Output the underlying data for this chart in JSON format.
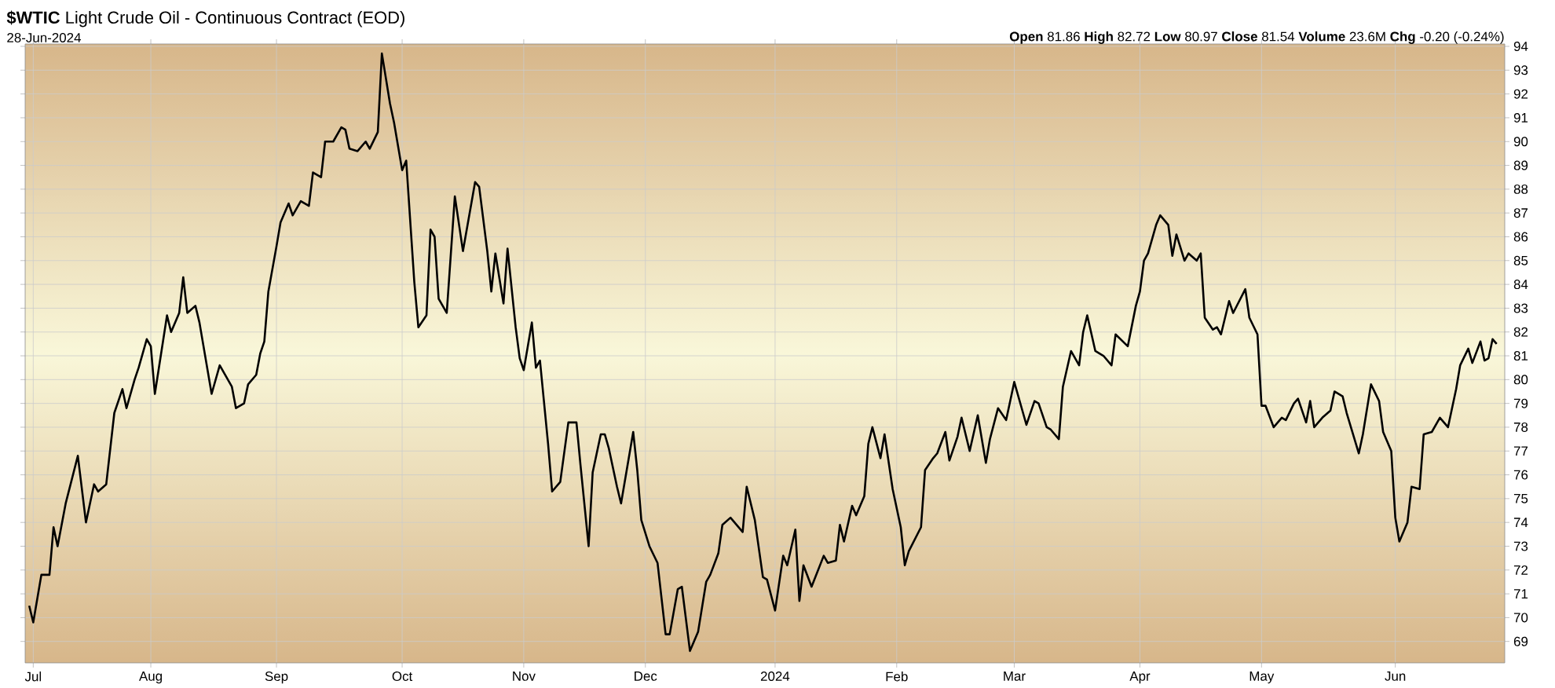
{
  "chart_data": {
    "type": "line",
    "title": "**$WTIC** Light Crude Oil - Continuous Contract (EOD)",
    "subtitle": "28-Jun-2024",
    "annotations": [
      "**Open** 81.86  **High** 82.72  **Low** 80.97  **Close** 81.54  **Volume** 23.6M  **Chg** -0.20 (-0.24%)"
    ],
    "x": [
      "2023-07-02",
      "2023-07-03",
      "2023-07-05",
      "2023-07-07",
      "2023-07-08",
      "2023-07-09",
      "2023-07-11",
      "2023-07-14",
      "2023-07-16",
      "2023-07-18",
      "2023-07-19",
      "2023-07-21",
      "2023-07-23",
      "2023-07-25",
      "2023-07-26",
      "2023-07-28",
      "2023-07-29",
      "2023-07-31",
      "2023-08-01",
      "2023-08-02",
      "2023-08-05",
      "2023-08-06",
      "2023-08-08",
      "2023-08-09",
      "2023-08-10",
      "2023-08-12",
      "2023-08-13",
      "2023-08-16",
      "2023-08-18",
      "2023-08-21",
      "2023-08-22",
      "2023-08-24",
      "2023-08-25",
      "2023-08-27",
      "2023-08-28",
      "2023-08-29",
      "2023-08-30",
      "2023-09-01",
      "2023-09-02",
      "2023-09-04",
      "2023-09-05",
      "2023-09-07",
      "2023-09-09",
      "2023-09-10",
      "2023-09-12",
      "2023-09-13",
      "2023-09-15",
      "2023-09-17",
      "2023-09-18",
      "2023-09-19",
      "2023-09-21",
      "2023-09-23",
      "2023-09-24",
      "2023-09-26",
      "2023-09-27",
      "2023-09-29",
      "2023-09-30",
      "2023-10-02",
      "2023-10-03",
      "2023-10-05",
      "2023-10-06",
      "2023-10-08",
      "2023-10-09",
      "2023-10-10",
      "2023-10-11",
      "2023-10-13",
      "2023-10-15",
      "2023-10-17",
      "2023-10-20",
      "2023-10-21",
      "2023-10-23",
      "2023-10-24",
      "2023-10-25",
      "2023-10-27",
      "2023-10-28",
      "2023-10-30",
      "2023-10-31",
      "2023-11-01",
      "2023-11-03",
      "2023-11-04",
      "2023-11-05",
      "2023-11-07",
      "2023-11-08",
      "2023-11-10",
      "2023-11-12",
      "2023-11-14",
      "2023-11-15",
      "2023-11-17",
      "2023-11-18",
      "2023-11-20",
      "2023-11-21",
      "2023-11-22",
      "2023-11-24",
      "2023-11-25",
      "2023-11-28",
      "2023-11-29",
      "2023-11-30",
      "2023-12-02",
      "2023-12-04",
      "2023-12-06",
      "2023-12-07",
      "2023-12-09",
      "2023-12-10",
      "2023-12-12",
      "2023-12-14",
      "2023-12-16",
      "2023-12-17",
      "2023-12-19",
      "2023-12-20",
      "2023-12-22",
      "2023-12-25",
      "2023-12-26",
      "2023-12-28",
      "2023-12-30",
      "2023-12-31",
      "2024-01-02",
      "2024-01-04",
      "2024-01-05",
      "2024-01-07",
      "2024-01-08",
      "2024-01-09",
      "2024-01-11",
      "2024-01-14",
      "2024-01-15",
      "2024-01-17",
      "2024-01-18",
      "2024-01-19",
      "2024-01-21",
      "2024-01-22",
      "2024-01-24",
      "2024-01-25",
      "2024-01-26",
      "2024-01-28",
      "2024-01-29",
      "2024-01-31",
      "2024-02-02",
      "2024-02-03",
      "2024-02-04",
      "2024-02-07",
      "2024-02-08",
      "2024-02-10",
      "2024-02-11",
      "2024-02-13",
      "2024-02-14",
      "2024-02-16",
      "2024-02-17",
      "2024-02-19",
      "2024-02-21",
      "2024-02-23",
      "2024-02-24",
      "2024-02-26",
      "2024-02-28",
      "2024-03-01",
      "2024-03-03",
      "2024-03-04",
      "2024-03-06",
      "2024-03-07",
      "2024-03-09",
      "2024-03-10",
      "2024-03-12",
      "2024-03-13",
      "2024-03-15",
      "2024-03-17",
      "2024-03-18",
      "2024-03-19",
      "2024-03-21",
      "2024-03-23",
      "2024-03-25",
      "2024-03-26",
      "2024-03-29",
      "2024-03-31",
      "2024-04-01",
      "2024-04-02",
      "2024-04-03",
      "2024-04-05",
      "2024-04-06",
      "2024-04-08",
      "2024-04-09",
      "2024-04-10",
      "2024-04-12",
      "2024-04-13",
      "2024-04-15",
      "2024-04-16",
      "2024-04-17",
      "2024-04-19",
      "2024-04-20",
      "2024-04-21",
      "2024-04-23",
      "2024-04-24",
      "2024-04-27",
      "2024-04-28",
      "2024-04-30",
      "2024-05-01",
      "2024-05-02",
      "2024-05-04",
      "2024-05-06",
      "2024-05-07",
      "2024-05-09",
      "2024-05-10",
      "2024-05-12",
      "2024-05-13",
      "2024-05-14",
      "2024-05-16",
      "2024-05-18",
      "2024-05-19",
      "2024-05-21",
      "2024-05-22",
      "2024-05-25",
      "2024-05-26",
      "2024-05-28",
      "2024-05-30",
      "2024-05-31",
      "2024-06-02",
      "2024-06-03",
      "2024-06-04",
      "2024-06-06",
      "2024-06-07",
      "2024-06-09",
      "2024-06-10",
      "2024-06-12",
      "2024-06-14",
      "2024-06-16",
      "2024-06-18",
      "2024-06-19",
      "2024-06-21",
      "2024-06-22",
      "2024-06-24",
      "2024-06-25",
      "2024-06-26",
      "2024-06-27",
      "2024-06-28"
    ],
    "series": [
      {
        "color": "#000000",
        "values": [
          70.5,
          69.8,
          71.8,
          71.8,
          73.8,
          73.0,
          74.8,
          76.8,
          74.0,
          75.6,
          75.3,
          75.6,
          78.6,
          79.6,
          78.8,
          80.0,
          80.5,
          81.7,
          81.4,
          79.4,
          82.7,
          82.0,
          82.8,
          84.3,
          82.8,
          83.1,
          82.4,
          79.4,
          80.6,
          79.7,
          78.8,
          79.0,
          79.8,
          80.2,
          81.1,
          81.6,
          83.7,
          85.6,
          86.6,
          87.4,
          86.9,
          87.5,
          87.3,
          88.7,
          88.5,
          90.0,
          90.0,
          90.6,
          90.5,
          89.7,
          89.6,
          90.0,
          89.7,
          90.4,
          93.7,
          91.6,
          90.8,
          88.8,
          89.2,
          84.1,
          82.2,
          82.7,
          86.3,
          86.0,
          83.4,
          82.8,
          87.7,
          85.4,
          88.3,
          88.1,
          85.4,
          83.7,
          85.3,
          83.2,
          85.5,
          82.2,
          80.9,
          80.4,
          82.4,
          80.5,
          80.8,
          77.3,
          75.3,
          75.7,
          78.2,
          78.2,
          76.4,
          73.0,
          76.1,
          77.7,
          77.7,
          77.1,
          75.5,
          74.8,
          77.8,
          76.2,
          74.1,
          73.0,
          72.3,
          69.3,
          69.3,
          71.2,
          71.3,
          68.6,
          69.4,
          71.5,
          71.8,
          72.7,
          73.9,
          74.2,
          73.6,
          75.5,
          74.1,
          71.7,
          71.6,
          70.3,
          72.6,
          72.2,
          73.7,
          70.7,
          72.2,
          71.3,
          72.6,
          72.3,
          72.4,
          73.9,
          73.2,
          74.7,
          74.3,
          75.1,
          77.3,
          78.0,
          76.7,
          77.7,
          75.4,
          73.8,
          72.2,
          72.8,
          73.8,
          76.2,
          76.7,
          76.9,
          77.8,
          76.6,
          77.6,
          78.4,
          77.0,
          78.5,
          76.5,
          77.5,
          78.8,
          78.3,
          79.9,
          78.7,
          78.1,
          79.1,
          79.0,
          78.0,
          77.9,
          77.5,
          79.7,
          81.2,
          80.6,
          82.0,
          82.7,
          81.2,
          81.0,
          80.6,
          81.9,
          81.4,
          83.1,
          83.7,
          85.0,
          85.3,
          86.5,
          86.9,
          86.5,
          85.2,
          86.1,
          85.0,
          85.3,
          85.0,
          85.3,
          82.6,
          82.1,
          82.2,
          81.9,
          83.3,
          82.8,
          83.8,
          82.6,
          81.9,
          78.9,
          78.9,
          78.0,
          78.4,
          78.3,
          79.0,
          79.2,
          78.2,
          79.1,
          78.0,
          78.4,
          78.7,
          79.5,
          79.3,
          78.6,
          76.9,
          77.7,
          79.8,
          79.1,
          77.8,
          77.0,
          74.2,
          73.2,
          74.0,
          75.5,
          75.4,
          77.7,
          77.8,
          78.4,
          78.0,
          79.6,
          80.6,
          81.3,
          80.7,
          81.6,
          80.8,
          80.9,
          81.7,
          81.5
        ]
      }
    ],
    "xlim": [
      "2023-07-01",
      "2024-06-30"
    ],
    "xticks": [
      {
        "value": "2023-07-03",
        "label": "Jul"
      },
      {
        "value": "2023-08-01",
        "label": "Aug"
      },
      {
        "value": "2023-09-01",
        "label": "Sep"
      },
      {
        "value": "2023-10-02",
        "label": "Oct"
      },
      {
        "value": "2023-11-01",
        "label": "Nov"
      },
      {
        "value": "2023-12-01",
        "label": "Dec"
      },
      {
        "value": "2024-01-02",
        "label": "2024"
      },
      {
        "value": "2024-02-01",
        "label": "Feb"
      },
      {
        "value": "2024-03-01",
        "label": "Mar"
      },
      {
        "value": "2024-04-01",
        "label": "Apr"
      },
      {
        "value": "2024-05-01",
        "label": "May"
      },
      {
        "value": "2024-06-03",
        "label": "Jun"
      }
    ],
    "ylim": [
      68.1,
      94.1
    ],
    "yticks": [
      69,
      70,
      71,
      72,
      73,
      74,
      75,
      76,
      77,
      78,
      79,
      80,
      81,
      82,
      83,
      84,
      85,
      86,
      87,
      88,
      89,
      90,
      91,
      92,
      93,
      94
    ],
    "grid": true
  }
}
